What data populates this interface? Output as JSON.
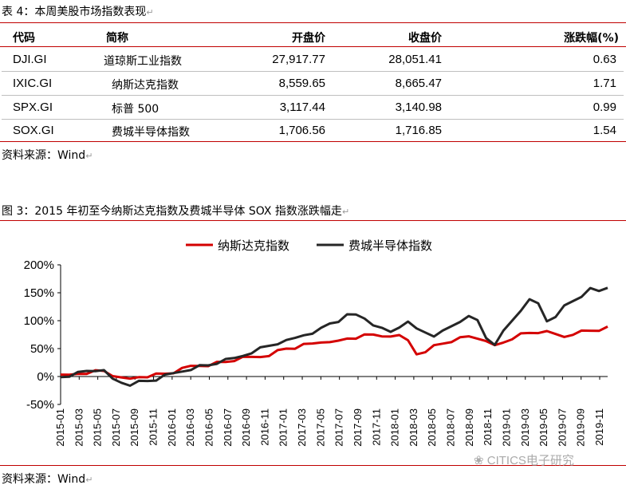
{
  "table": {
    "caption": "表 4：本周美股市场指数表现",
    "headers": [
      "代码",
      "简称",
      "开盘价",
      "收盘价",
      "涨跌幅(%)"
    ],
    "rows": [
      {
        "code": "DJI.GI",
        "name": "道琼斯工业指数",
        "open": "27,917.77",
        "close": "28,051.41",
        "change": "0.63"
      },
      {
        "code": "IXIC.GI",
        "name": "纳斯达克指数",
        "open": "8,559.65",
        "close": "8,665.47",
        "change": "1.71"
      },
      {
        "code": "SPX.GI",
        "name": "标普 500",
        "open": "3,117.44",
        "close": "3,140.98",
        "change": "0.99"
      },
      {
        "code": "SOX.GI",
        "name": "费城半导体指数",
        "open": "1,706.56",
        "close": "1,716.85",
        "change": "1.54"
      }
    ],
    "source": "资料来源：Wind"
  },
  "figure": {
    "caption": "图 3：2015 年初至今纳斯达克指数及费城半导体 SOX 指数涨跌幅走",
    "source": "资料来源：Wind",
    "watermark": "CITICS电子研究"
  },
  "chart_data": {
    "type": "line",
    "ylim": [
      -50,
      200
    ],
    "yticks": [
      "200%",
      "150%",
      "100%",
      "50%",
      "0%",
      "-50%"
    ],
    "ytick_values": [
      200,
      150,
      100,
      50,
      0,
      -50
    ],
    "x_ticks": [
      "2015-01",
      "2015-03",
      "2015-05",
      "2015-07",
      "2015-09",
      "2015-11",
      "2016-01",
      "2016-03",
      "2016-05",
      "2016-07",
      "2016-09",
      "2016-11",
      "2017-01",
      "2017-03",
      "2017-05",
      "2017-07",
      "2017-09",
      "2017-11",
      "2018-01",
      "2018-03",
      "2018-05",
      "2018-07",
      "2018-09",
      "2018-11",
      "2019-01",
      "2019-03",
      "2019-05",
      "2019-07",
      "2019-09",
      "2019-11"
    ],
    "legend_position": "top",
    "grid": false,
    "series": [
      {
        "name": "纳斯达克指数",
        "color": "#d40000",
        "values": [
          0,
          2,
          6,
          8,
          9,
          10,
          3,
          -5,
          -5,
          0,
          2,
          3,
          5,
          8,
          12,
          18,
          20,
          22,
          24,
          26,
          30,
          32,
          34,
          36,
          40,
          45,
          50,
          52,
          55,
          58,
          62,
          65,
          62,
          68,
          70,
          72,
          74,
          73,
          75,
          72,
          65,
          42,
          40,
          55,
          60,
          65,
          68,
          72,
          70,
          60,
          55,
          62,
          70,
          75,
          78,
          80,
          78,
          75,
          72,
          78,
          80,
          82,
          84,
          86
        ]
      },
      {
        "name": "费城半导体指数",
        "color": "#262626",
        "values": [
          0,
          3,
          6,
          10,
          12,
          8,
          -5,
          -10,
          -13,
          -10,
          -8,
          -5,
          0,
          5,
          10,
          15,
          18,
          20,
          25,
          28,
          32,
          38,
          45,
          50,
          55,
          60,
          62,
          68,
          75,
          80,
          85,
          95,
          100,
          108,
          110,
          105,
          95,
          85,
          80,
          90,
          95,
          85,
          80,
          75,
          80,
          90,
          100,
          105,
          100,
          70,
          60,
          80,
          100,
          120,
          135,
          130,
          100,
          110,
          125,
          135,
          145,
          155,
          152,
          160
        ]
      }
    ]
  }
}
